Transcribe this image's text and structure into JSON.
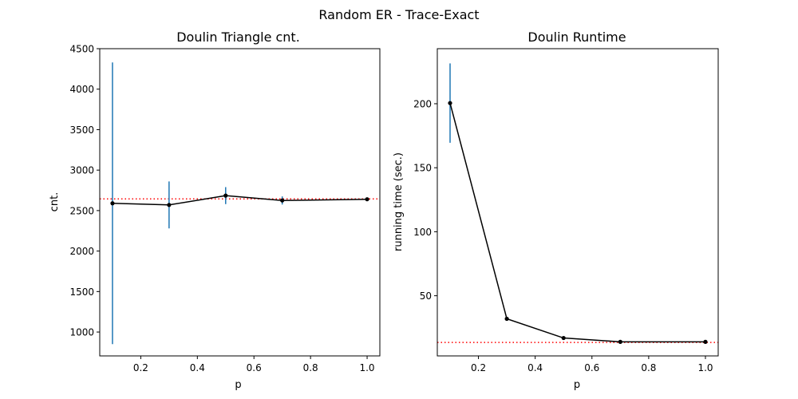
{
  "figure": {
    "suptitle": "Random ER - Trace-Exact"
  },
  "chart_data": [
    {
      "type": "line",
      "title": "Doulin Triangle cnt.",
      "xlabel": "p",
      "ylabel": "cnt.",
      "xlim": [
        0.055,
        1.045
      ],
      "ylim": [
        705,
        4500
      ],
      "xticks": [
        0.2,
        0.4,
        0.6,
        0.8,
        1.0
      ],
      "xtick_labels": [
        "0.2",
        "0.4",
        "0.6",
        "0.8",
        "1.0"
      ],
      "yticks": [
        1000,
        1500,
        2000,
        2500,
        3000,
        3500,
        4000,
        4500
      ],
      "ytick_labels": [
        "1000",
        "1500",
        "2000",
        "2500",
        "3000",
        "3500",
        "4000",
        "4500"
      ],
      "x": [
        0.1,
        0.3,
        0.5,
        0.7,
        1.0
      ],
      "y": [
        2590,
        2570,
        2685,
        2625,
        2640
      ],
      "yerr": [
        1740,
        290,
        105,
        50,
        10
      ],
      "reference_line": 2645,
      "colors": {
        "line": "#000000",
        "errorbar": "#1f77b4",
        "reference": "#ff0000"
      }
    },
    {
      "type": "line",
      "title": "Doulin Runtime",
      "xlabel": "p",
      "ylabel": "running time (sec.)",
      "xlim": [
        0.055,
        1.045
      ],
      "ylim": [
        3,
        243
      ],
      "xticks": [
        0.2,
        0.4,
        0.6,
        0.8,
        1.0
      ],
      "xtick_labels": [
        "0.2",
        "0.4",
        "0.6",
        "0.8",
        "1.0"
      ],
      "yticks": [
        50,
        100,
        150,
        200
      ],
      "ytick_labels": [
        "50",
        "100",
        "150",
        "200"
      ],
      "x": [
        0.1,
        0.3,
        0.5,
        0.7,
        1.0
      ],
      "y": [
        200.5,
        32,
        17,
        14,
        14
      ],
      "yerr": [
        31,
        0.5,
        0.5,
        0.3,
        0.2
      ],
      "reference_line": 13.5,
      "colors": {
        "line": "#000000",
        "errorbar": "#1f77b4",
        "reference": "#ff0000"
      }
    }
  ]
}
